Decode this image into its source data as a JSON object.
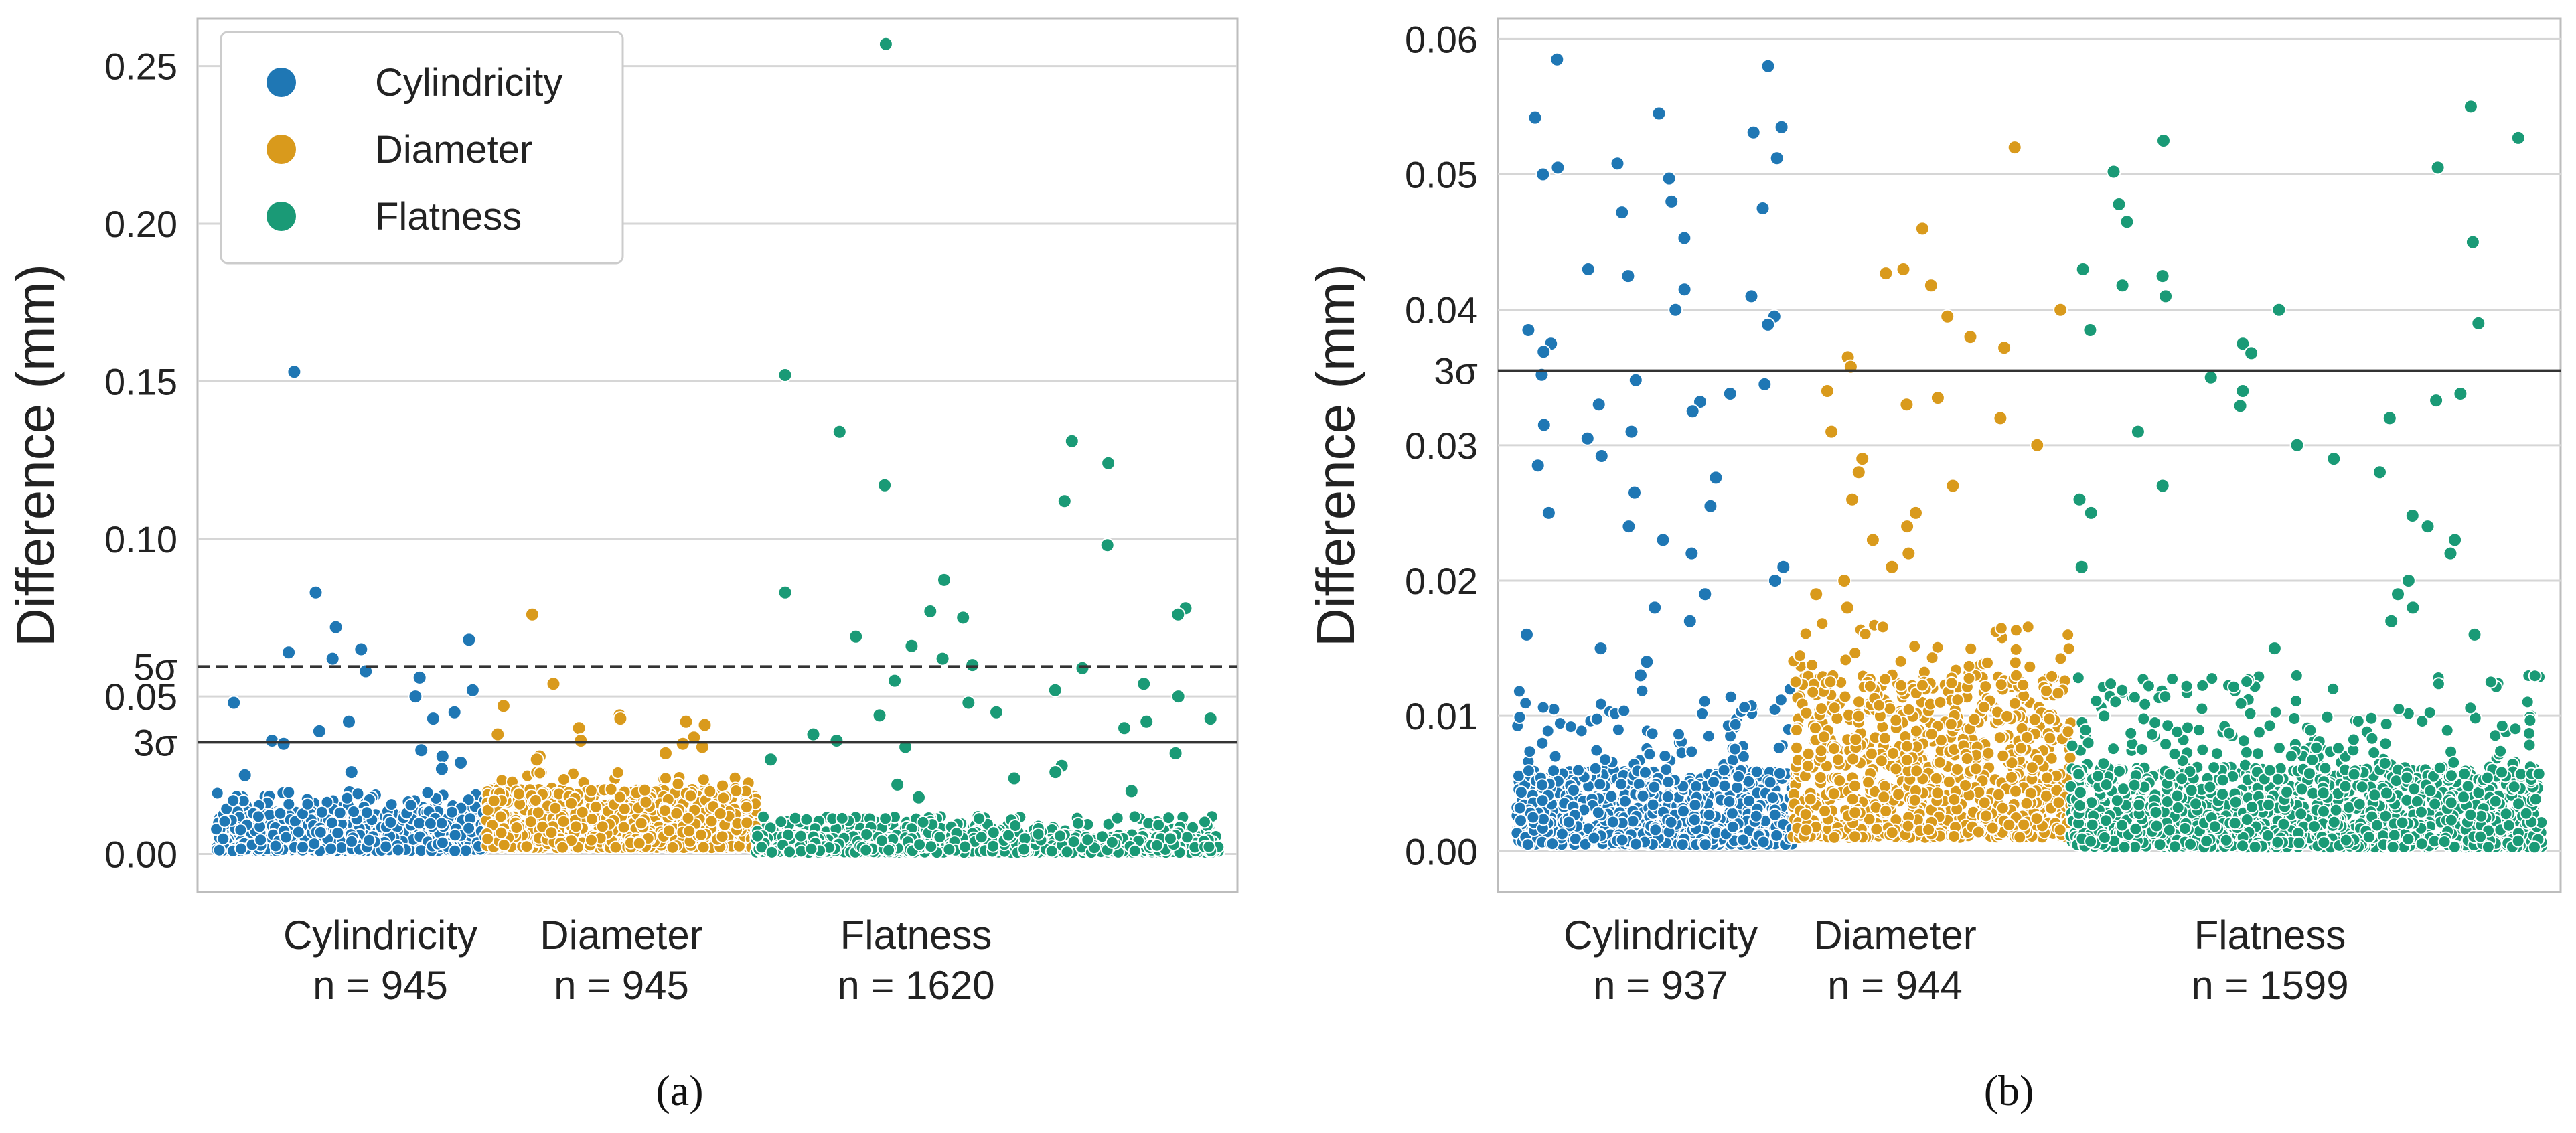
{
  "colors": {
    "cylindricity": "#1f77b4",
    "diameter": "#d99a1c",
    "flatness": "#1a9a76",
    "grid": "#d6d6d6",
    "frame": "#bdbdbd"
  },
  "chart_data": [
    {
      "type": "scatter",
      "panel_label": "(a)",
      "ylabel": "Difference (mm)",
      "ylim": [
        -0.012,
        0.265
      ],
      "yticks": [
        {
          "value": 0.0,
          "label": "0.00"
        },
        {
          "value": 0.05,
          "label": "0.05"
        },
        {
          "value": 0.1,
          "label": "0.10"
        },
        {
          "value": 0.15,
          "label": "0.15"
        },
        {
          "value": 0.2,
          "label": "0.20"
        },
        {
          "value": 0.25,
          "label": "0.25"
        }
      ],
      "reference_lines": [
        {
          "name": "3σ",
          "label": "3σ",
          "value": 0.0355,
          "style": "solid"
        },
        {
          "name": "5σ",
          "label": "5σ",
          "value": 0.0595,
          "style": "dashed"
        }
      ],
      "legend": {
        "placement": "top-left",
        "entries": [
          "Cylindricity",
          "Diameter",
          "Flatness"
        ]
      },
      "groups": [
        {
          "name": "Cylindricity",
          "line1": "Cylindricity",
          "line2": "n = 945",
          "n": 945,
          "x": [
            0.0,
            0.945
          ],
          "bulk": [
            0.001,
            0.009,
            0.02
          ],
          "outliers": [
            0.153,
            0.083,
            0.072,
            0.068,
            0.065,
            0.064,
            0.062,
            0.058,
            0.056,
            0.052,
            0.05,
            0.048,
            0.045,
            0.043,
            0.042,
            0.039,
            0.036,
            0.035,
            0.033,
            0.031,
            0.029,
            0.027,
            0.026,
            0.025
          ]
        },
        {
          "name": "Diameter",
          "line1": "Diameter",
          "line2": "n = 945",
          "n": 945,
          "x": [
            0.945,
            1.89
          ],
          "bulk": [
            0.002,
            0.014,
            0.026
          ],
          "outliers": [
            0.076,
            0.054,
            0.047,
            0.044,
            0.043,
            0.042,
            0.041,
            0.04,
            0.038,
            0.037,
            0.036,
            0.035,
            0.034,
            0.032,
            0.031,
            0.03
          ]
        },
        {
          "name": "Flatness",
          "line1": "Flatness",
          "line2": "n = 1620",
          "n": 1620,
          "x": [
            1.89,
            3.51
          ],
          "bulk": [
            0.0005,
            0.004,
            0.012
          ],
          "outliers": [
            0.257,
            0.152,
            0.134,
            0.131,
            0.124,
            0.117,
            0.112,
            0.098,
            0.087,
            0.083,
            0.078,
            0.077,
            0.076,
            0.075,
            0.069,
            0.066,
            0.062,
            0.06,
            0.059,
            0.055,
            0.054,
            0.052,
            0.05,
            0.048,
            0.045,
            0.044,
            0.043,
            0.042,
            0.04,
            0.038,
            0.036,
            0.034,
            0.032,
            0.03,
            0.028,
            0.026,
            0.024,
            0.022,
            0.02,
            0.018
          ]
        }
      ]
    },
    {
      "type": "scatter",
      "panel_label": "(b)",
      "ylabel": "Difference (mm)",
      "ylim": [
        -0.003,
        0.0615
      ],
      "yticks": [
        {
          "value": 0.0,
          "label": "0.00"
        },
        {
          "value": 0.01,
          "label": "0.01"
        },
        {
          "value": 0.02,
          "label": "0.02"
        },
        {
          "value": 0.03,
          "label": "0.03"
        },
        {
          "value": 0.04,
          "label": "0.04"
        },
        {
          "value": 0.05,
          "label": "0.05"
        },
        {
          "value": 0.06,
          "label": "0.06"
        }
      ],
      "reference_lines": [
        {
          "name": "3σ",
          "label": "3σ",
          "value": 0.0355,
          "style": "solid"
        }
      ],
      "groups": [
        {
          "name": "Cylindricity",
          "line1": "Cylindricity",
          "line2": "n = 937",
          "n": 937,
          "x": [
            0.0,
            0.937
          ],
          "bulk": [
            0.0005,
            0.004,
            0.012
          ],
          "outliers": [
            0.0585,
            0.058,
            0.0545,
            0.0542,
            0.0535,
            0.0531,
            0.0512,
            0.0508,
            0.0505,
            0.05,
            0.0497,
            0.048,
            0.0475,
            0.0472,
            0.0453,
            0.043,
            0.0425,
            0.0415,
            0.041,
            0.04,
            0.0395,
            0.0389,
            0.0385,
            0.0375,
            0.0369,
            0.0352,
            0.0348,
            0.0345,
            0.0338,
            0.0332,
            0.033,
            0.0325,
            0.0315,
            0.031,
            0.0305,
            0.0292,
            0.0285,
            0.0276,
            0.0265,
            0.0255,
            0.025,
            0.024,
            0.023,
            0.022,
            0.021,
            0.02,
            0.019,
            0.018,
            0.017,
            0.016,
            0.015,
            0.014,
            0.013
          ]
        },
        {
          "name": "Diameter",
          "line1": "Diameter",
          "line2": "n = 944",
          "n": 944,
          "x": [
            0.937,
            1.881
          ],
          "bulk": [
            0.001,
            0.0085,
            0.017
          ],
          "outliers": [
            0.052,
            0.046,
            0.043,
            0.0427,
            0.0418,
            0.04,
            0.0395,
            0.038,
            0.0372,
            0.0365,
            0.0358,
            0.034,
            0.0335,
            0.033,
            0.032,
            0.031,
            0.03,
            0.029,
            0.028,
            0.027,
            0.026,
            0.025,
            0.024,
            0.023,
            0.022,
            0.021,
            0.02,
            0.019,
            0.018
          ]
        },
        {
          "name": "Flatness",
          "line1": "Flatness",
          "line2": "n = 1599",
          "n": 1599,
          "x": [
            1.881,
            3.48
          ],
          "bulk": [
            0.0003,
            0.004,
            0.013
          ],
          "outliers": [
            0.055,
            0.0527,
            0.0525,
            0.0505,
            0.0502,
            0.0478,
            0.0465,
            0.045,
            0.043,
            0.0425,
            0.0418,
            0.041,
            0.04,
            0.039,
            0.0385,
            0.0375,
            0.0368,
            0.035,
            0.034,
            0.0338,
            0.0333,
            0.0329,
            0.032,
            0.031,
            0.03,
            0.029,
            0.028,
            0.027,
            0.026,
            0.025,
            0.0248,
            0.024,
            0.023,
            0.022,
            0.021,
            0.02,
            0.019,
            0.018,
            0.017,
            0.016,
            0.015
          ]
        }
      ]
    }
  ]
}
